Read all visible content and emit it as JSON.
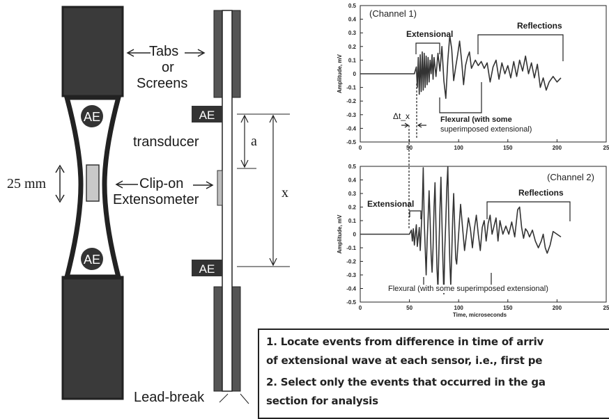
{
  "specimen": {
    "tabs_label_line1": "Tabs",
    "tabs_label_line2": "or",
    "tabs_label_line3": "Screens",
    "sensor_label": "AE",
    "transducer_label": "transducer",
    "width_label": "25 mm",
    "extensometer_line1": "Clip-on",
    "extensometer_line2": "Extensometer",
    "distance_a": "a",
    "distance_x": "x",
    "lead_break_label": "Lead-break"
  },
  "notes": {
    "item1_line1": "1. Locate events from difference in time of arriv",
    "item1_line2": "of extensional wave at each sensor, i.e., first pe",
    "item2_line1": "2. Select only the events that occurred in the ga",
    "item2_line2": "section for analysis"
  },
  "chart_data": [
    {
      "type": "line",
      "title": "(Channel 1)",
      "xlabel": "",
      "ylabel": "Amplitude, mV",
      "xlim": [
        0,
        250
      ],
      "ylim": [
        -0.5,
        0.5
      ],
      "xticks": [
        "0",
        "50",
        "100",
        "150",
        "200",
        "25"
      ],
      "yticks": [
        "0.5",
        "0.4",
        "0.3",
        "0.2",
        "0.1",
        "0",
        "-0.1",
        "-0.2",
        "-0.3",
        "-0.4",
        "-0.5"
      ],
      "annotations": [
        "Extensional",
        "Reflections",
        "Flexural (with some",
        "superimposed extensional)",
        "Δt_x"
      ],
      "series": [
        {
          "values": [
            [
              0,
              0
            ],
            [
              55,
              0
            ],
            [
              57,
              0.05
            ],
            [
              58,
              -0.1
            ],
            [
              59,
              0.12
            ],
            [
              60,
              -0.15
            ],
            [
              61,
              0.14
            ],
            [
              62,
              -0.13
            ],
            [
              63,
              0.16
            ],
            [
              64,
              -0.12
            ],
            [
              65,
              0.15
            ],
            [
              66,
              -0.1
            ],
            [
              67,
              0.13
            ],
            [
              68,
              -0.08
            ],
            [
              69,
              0.12
            ],
            [
              70,
              -0.06
            ],
            [
              71,
              0.1
            ],
            [
              72,
              0.0
            ],
            [
              73,
              0.14
            ],
            [
              74,
              -0.04
            ],
            [
              75,
              0.12
            ],
            [
              77,
              -0.02
            ],
            [
              79,
              0.15
            ],
            [
              81,
              0.02
            ],
            [
              83,
              0.2
            ],
            [
              85,
              -0.05
            ],
            [
              87,
              -0.18
            ],
            [
              89,
              0.1
            ],
            [
              91,
              0.28
            ],
            [
              93,
              0.18
            ],
            [
              95,
              -0.05
            ],
            [
              97,
              0.05
            ],
            [
              99,
              0.14
            ],
            [
              101,
              0.24
            ],
            [
              103,
              0.1
            ],
            [
              105,
              -0.08
            ],
            [
              107,
              0.06
            ],
            [
              109,
              0.12
            ],
            [
              111,
              0.16
            ],
            [
              113,
              0.04
            ],
            [
              115,
              0.07
            ],
            [
              117,
              0.1
            ],
            [
              120,
              0.06
            ],
            [
              123,
              0.09
            ],
            [
              126,
              0.04
            ],
            [
              129,
              0.08
            ],
            [
              132,
              -0.06
            ],
            [
              135,
              0.05
            ],
            [
              138,
              0.1
            ],
            [
              141,
              -0.04
            ],
            [
              144,
              0.08
            ],
            [
              147,
              0.0
            ],
            [
              150,
              0.06
            ],
            [
              153,
              -0.03
            ],
            [
              156,
              0.09
            ],
            [
              159,
              -0.02
            ],
            [
              162,
              0.1
            ],
            [
              165,
              0.02
            ],
            [
              168,
              0.13
            ],
            [
              171,
              0.0
            ],
            [
              174,
              0.08
            ],
            [
              177,
              -0.03
            ],
            [
              180,
              0.07
            ],
            [
              183,
              -0.1
            ],
            [
              186,
              -0.03
            ],
            [
              189,
              -0.12
            ],
            [
              192,
              -0.06
            ],
            [
              196,
              -0.02
            ],
            [
              200,
              -0.06
            ],
            [
              204,
              -0.03
            ]
          ]
        }
      ]
    },
    {
      "type": "line",
      "title": "(Channel 2)",
      "xlabel": "Time, microseconds",
      "ylabel": "Amplitude, mV",
      "xlim": [
        0,
        250
      ],
      "ylim": [
        -0.5,
        0.5
      ],
      "xticks": [
        "0",
        "50",
        "100",
        "150",
        "200",
        "25"
      ],
      "yticks": [
        "0.5",
        "0.4",
        "0.3",
        "0.2",
        "0.1",
        "0",
        "-0.1",
        "-0.2",
        "-0.3",
        "-0.4",
        "-0.5"
      ],
      "annotations": [
        "Extensional",
        "Reflections",
        "Flexural (with some superimposed extensional)"
      ],
      "series": [
        {
          "values": [
            [
              0,
              0
            ],
            [
              45,
              0
            ],
            [
              50,
              0.0
            ],
            [
              52,
              0.03
            ],
            [
              53,
              -0.05
            ],
            [
              54,
              0.04
            ],
            [
              55,
              -0.08
            ],
            [
              56,
              0.0
            ],
            [
              57,
              0.07
            ],
            [
              58,
              -0.09
            ],
            [
              60,
              0.05
            ],
            [
              61,
              -0.12
            ],
            [
              63,
              0.2
            ],
            [
              64,
              0.49
            ],
            [
              65,
              0.1
            ],
            [
              66,
              -0.1
            ],
            [
              67,
              -0.3
            ],
            [
              68,
              -0.05
            ],
            [
              69,
              0.12
            ],
            [
              70,
              0.32
            ],
            [
              71,
              0.1
            ],
            [
              72,
              -0.15
            ],
            [
              73,
              -0.28
            ],
            [
              74,
              -0.1
            ],
            [
              75,
              0.2
            ],
            [
              76,
              0.38
            ],
            [
              77,
              0.05
            ],
            [
              78,
              -0.25
            ],
            [
              79,
              -0.4
            ],
            [
              80,
              -0.1
            ],
            [
              81,
              0.18
            ],
            [
              82,
              0.42
            ],
            [
              83,
              0.1
            ],
            [
              84,
              -0.2
            ],
            [
              85,
              -0.44
            ],
            [
              86,
              -0.1
            ],
            [
              87,
              0.1
            ],
            [
              88,
              0.35
            ],
            [
              89,
              0.5
            ],
            [
              90,
              0.1
            ],
            [
              91,
              -0.2
            ],
            [
              92,
              -0.38
            ],
            [
              93,
              -0.15
            ],
            [
              94,
              0.12
            ],
            [
              95,
              0.3
            ],
            [
              96,
              0.05
            ],
            [
              97,
              -0.18
            ],
            [
              98,
              -0.22
            ],
            [
              100,
              0.0
            ],
            [
              102,
              0.22
            ],
            [
              104,
              0.05
            ],
            [
              106,
              -0.12
            ],
            [
              108,
              0.0
            ],
            [
              110,
              0.12
            ],
            [
              112,
              0.04
            ],
            [
              114,
              -0.1
            ],
            [
              116,
              0.04
            ],
            [
              118,
              0.14
            ],
            [
              120,
              0.0
            ],
            [
              122,
              -0.12
            ],
            [
              124,
              0.05
            ],
            [
              126,
              0.1
            ],
            [
              128,
              -0.05
            ],
            [
              130,
              0.08
            ],
            [
              132,
              0.14
            ],
            [
              134,
              0.0
            ],
            [
              136,
              0.06
            ],
            [
              138,
              0.12
            ],
            [
              140,
              -0.05
            ],
            [
              142,
              0.1
            ],
            [
              145,
              0.0
            ],
            [
              148,
              0.06
            ],
            [
              151,
              0.0
            ],
            [
              154,
              0.09
            ],
            [
              157,
              -0.02
            ],
            [
              160,
              0.18
            ],
            [
              162,
              0.2
            ],
            [
              164,
              0.05
            ],
            [
              166,
              -0.03
            ],
            [
              168,
              0.04
            ],
            [
              170,
              0.02
            ],
            [
              172,
              -0.02
            ],
            [
              175,
              0.03
            ],
            [
              178,
              -0.05
            ],
            [
              181,
              -0.1
            ],
            [
              184,
              -0.05
            ],
            [
              186,
              0.0
            ],
            [
              188,
              -0.1
            ],
            [
              190,
              -0.14
            ],
            [
              193,
              -0.08
            ],
            [
              196,
              0.02
            ],
            [
              200,
              0.0
            ],
            [
              204,
              -0.02
            ]
          ]
        }
      ]
    }
  ]
}
